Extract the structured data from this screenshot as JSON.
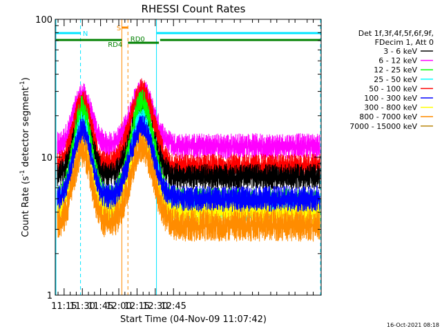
{
  "chart_data": {
    "type": "line",
    "title": "RHESSI Count Rates",
    "xlabel": "Start Time (04-Nov-09 11:07:42)",
    "ylabel": "Count Rate (s",
    "ylabel_sup": "-1",
    "ylabel_mid": " detector segment",
    "ylabel_sup2": "-1",
    "ylabel_end": ")",
    "y_scale": "log",
    "ylim": [
      1,
      100
    ],
    "xlim_min": [
      667.7,
      886.5
    ],
    "x_ticks": [
      {
        "v": 675,
        "label": "11:15"
      },
      {
        "v": 690,
        "label": "11:30"
      },
      {
        "v": 705,
        "label": "11:45"
      },
      {
        "v": 720,
        "label": "12:00"
      },
      {
        "v": 735,
        "label": "12:15"
      },
      {
        "v": 750,
        "label": "12:30"
      },
      {
        "v": 765,
        "label": "12:45"
      }
    ],
    "y_ticks": [
      {
        "v": 1,
        "label": "1"
      },
      {
        "v": 10,
        "label": "10"
      },
      {
        "v": 100,
        "label": "100"
      }
    ],
    "legend_header": [
      "Det 1f,3f,4f,5f,6f,9f,",
      "FDecim 1, Att 0"
    ],
    "legend_position": "right",
    "series": [
      {
        "name": "3 - 6 keV",
        "color": "#000000",
        "base": 7.2,
        "peak1": 19.0,
        "peak2": 21.5
      },
      {
        "name": "6 - 12 keV",
        "color": "#ff00ff",
        "base": 12.0,
        "peak1": 28.0,
        "peak2": 30.0
      },
      {
        "name": "12 - 25 keV",
        "color": "#00ff00",
        "base": 4.8,
        "peak1": 22.5,
        "peak2": 25.0
      },
      {
        "name": "25 - 50 keV",
        "color": "#00ffff",
        "base": 4.3,
        "peak1": 17.5,
        "peak2": 18.5
      },
      {
        "name": "50 - 100 keV",
        "color": "#ff0000",
        "base": 8.5,
        "peak1": 25.5,
        "peak2": 30.0
      },
      {
        "name": "100 - 300 keV",
        "color": "#0000ff",
        "base": 5.0,
        "peak1": 15.5,
        "peak2": 16.5
      },
      {
        "name": "300 - 800 keV",
        "color": "#ffff00",
        "base": 4.0,
        "peak1": 13.5,
        "peak2": 14.5
      },
      {
        "name": "800 - 7000 keV",
        "color": "#ff8c00",
        "base": 3.2,
        "peak1": 11.0,
        "peak2": 11.8
      },
      {
        "name": "7000 - 15000 keV",
        "color": "#b8860b",
        "base": 0,
        "peak1": 0,
        "peak2": 0
      }
    ],
    "peak1_time": 690,
    "peak2_time": 739,
    "annotations": [
      {
        "label": "N",
        "color": "#00e5ff"
      },
      {
        "label": "S",
        "color": "#ff8c00"
      },
      {
        "label": "RD0",
        "color": "#008000"
      },
      {
        "label": "RD4",
        "color": "#008000"
      }
    ],
    "timestamp": "16-Oct-2021 08:18"
  }
}
